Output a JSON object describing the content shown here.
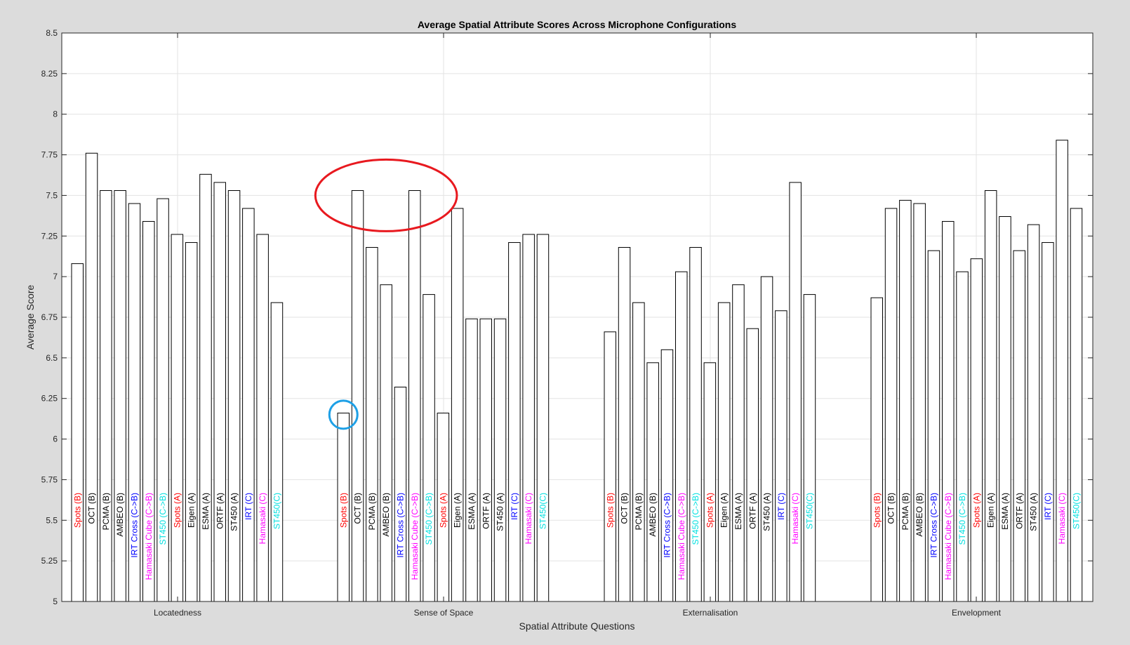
{
  "chart_data": {
    "type": "bar",
    "title": "Average Spatial Attribute Scores Across Microphone Configurations",
    "xlabel": "Spatial Attribute Questions",
    "ylabel": "Average Score",
    "ylim": [
      5,
      8.5
    ],
    "yticks": [
      "5",
      "5.25",
      "5.5",
      "5.75",
      "6",
      "6.25",
      "6.5",
      "6.75",
      "7",
      "7.25",
      "7.5",
      "7.75",
      "8",
      "8.25",
      "8.5"
    ],
    "grid": true,
    "groups": [
      {
        "name": "Locatedness",
        "bars": [
          {
            "label": "Spots (B)",
            "value": 7.08
          },
          {
            "label": "OCT (B)",
            "value": 7.76
          },
          {
            "label": "PCMA (B)",
            "value": 7.53
          },
          {
            "label": "AMBEO (B)",
            "value": 7.53
          },
          {
            "label": "IRT Cross (C->B)",
            "value": 7.45
          },
          {
            "label": "Hamasaki Cube (C->B)",
            "value": 7.34
          },
          {
            "label": "ST450 (C->B)",
            "value": 7.48
          },
          {
            "label": "Spots (A)",
            "value": 7.26
          },
          {
            "label": "Eigen (A)",
            "value": 7.21
          },
          {
            "label": "ESMA (A)",
            "value": 7.63
          },
          {
            "label": "ORTF (A)",
            "value": 7.58
          },
          {
            "label": "ST450 (A)",
            "value": 7.53
          },
          {
            "label": "IRT (C)",
            "value": 7.42
          },
          {
            "label": "Hamasaki (C)",
            "value": 7.26
          },
          {
            "label": "ST450(C)",
            "value": 6.84
          }
        ]
      },
      {
        "name": "Sense of Space",
        "bars": [
          {
            "label": "Spots (B)",
            "value": 6.16
          },
          {
            "label": "OCT (B)",
            "value": 7.53
          },
          {
            "label": "PCMA (B)",
            "value": 7.18
          },
          {
            "label": "AMBEO (B)",
            "value": 6.95
          },
          {
            "label": "IRT Cross (C->B)",
            "value": 6.32
          },
          {
            "label": "Hamasaki Cube (C->B)",
            "value": 7.53
          },
          {
            "label": "ST450 (C->B)",
            "value": 6.89
          },
          {
            "label": "Spots (A)",
            "value": 6.16
          },
          {
            "label": "Eigen (A)",
            "value": 7.42
          },
          {
            "label": "ESMA (A)",
            "value": 6.74
          },
          {
            "label": "ORTF (A)",
            "value": 6.74
          },
          {
            "label": "ST450 (A)",
            "value": 6.74
          },
          {
            "label": "IRT (C)",
            "value": 7.21
          },
          {
            "label": "Hamasaki (C)",
            "value": 7.26
          },
          {
            "label": "ST450(C)",
            "value": 7.26
          }
        ]
      },
      {
        "name": "Externalisation",
        "bars": [
          {
            "label": "Spots (B)",
            "value": 6.66
          },
          {
            "label": "OCT (B)",
            "value": 7.18
          },
          {
            "label": "PCMA (B)",
            "value": 6.84
          },
          {
            "label": "AMBEO (B)",
            "value": 6.47
          },
          {
            "label": "IRT Cross (C->B)",
            "value": 6.55
          },
          {
            "label": "Hamasaki Cube (C->B)",
            "value": 7.03
          },
          {
            "label": "ST450 (C->B)",
            "value": 7.18
          },
          {
            "label": "Spots (A)",
            "value": 6.47
          },
          {
            "label": "Eigen (A)",
            "value": 6.84
          },
          {
            "label": "ESMA (A)",
            "value": 6.95
          },
          {
            "label": "ORTF (A)",
            "value": 6.68
          },
          {
            "label": "ST450 (A)",
            "value": 7.0
          },
          {
            "label": "IRT (C)",
            "value": 6.79
          },
          {
            "label": "Hamasaki (C)",
            "value": 7.58
          },
          {
            "label": "ST450(C)",
            "value": 6.89
          }
        ]
      },
      {
        "name": "Envelopment",
        "bars": [
          {
            "label": "Spots (B)",
            "value": 6.87
          },
          {
            "label": "OCT (B)",
            "value": 7.42
          },
          {
            "label": "PCMA (B)",
            "value": 7.47
          },
          {
            "label": "AMBEO (B)",
            "value": 7.45
          },
          {
            "label": "IRT Cross (C->B)",
            "value": 7.16
          },
          {
            "label": "Hamasaki Cube (C->B)",
            "value": 7.34
          },
          {
            "label": "ST450 (C->B)",
            "value": 7.03
          },
          {
            "label": "Spots (A)",
            "value": 7.11
          },
          {
            "label": "Eigen (A)",
            "value": 7.53
          },
          {
            "label": "ESMA (A)",
            "value": 7.37
          },
          {
            "label": "ORTF (A)",
            "value": 7.16
          },
          {
            "label": "ST450 (A)",
            "value": 7.32
          },
          {
            "label": "IRT (C)",
            "value": 7.21
          },
          {
            "label": "Hamasaki (C)",
            "value": 7.84
          },
          {
            "label": "ST450(C)",
            "value": 7.42
          }
        ]
      }
    ],
    "label_colors": {
      "Spots (B)": "#ff0000",
      "OCT (B)": "#000000",
      "PCMA (B)": "#000000",
      "AMBEO (B)": "#000000",
      "IRT Cross (C->B)": "#0000ff",
      "Hamasaki Cube (C->B)": "#ff00ff",
      "ST450 (C->B)": "#00e0e0",
      "Spots (A)": "#ff0000",
      "Eigen (A)": "#000000",
      "ESMA (A)": "#000000",
      "ORTF (A)": "#000000",
      "ST450 (A)": "#000000",
      "IRT (C)": "#0000ff",
      "Hamasaki (C)": "#ff00ff",
      "ST450(C)": "#00e0e0"
    },
    "annotations": [
      {
        "shape": "ellipse",
        "color": "#e8191f",
        "around": {
          "group": "Sense of Space",
          "bars": [
            "OCT (B)",
            "Hamasaki Cube (C->B)"
          ],
          "y_center": 7.5
        }
      },
      {
        "shape": "circle",
        "color": "#1ea0e6",
        "around": {
          "group": "Sense of Space",
          "bars": [
            "Spots (B)"
          ],
          "y_center": 6.15
        }
      }
    ]
  }
}
